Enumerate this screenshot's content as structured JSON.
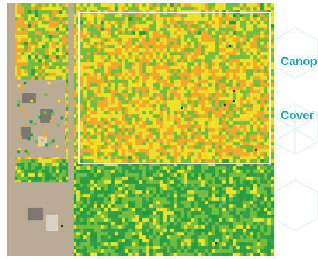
{
  "panel": {
    "title_line1": "Canopy",
    "title_line2": "Cover",
    "title_color": "#1aa7b8"
  },
  "map": {
    "layer_name": "canopy-cover-heatmap",
    "palette": {
      "high": "#1f9e3d",
      "medium_high": "#6cc035",
      "medium": "#f2e51c",
      "low": "#f6a821",
      "bare": "#b9ab94"
    },
    "selection_border_color": "#ffffff"
  }
}
